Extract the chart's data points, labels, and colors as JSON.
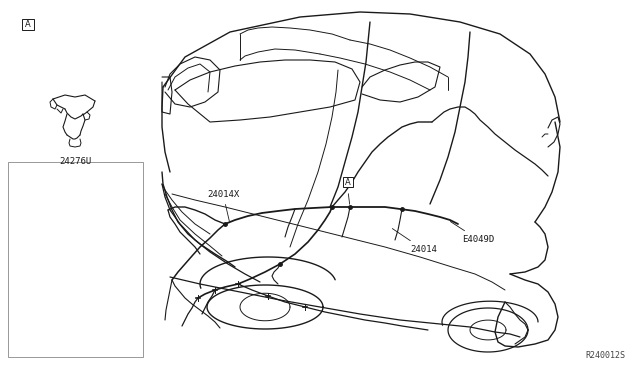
{
  "bg_color": "#ffffff",
  "line_color": "#1a1a1a",
  "fig_width": 6.4,
  "fig_height": 3.72,
  "dpi": 100,
  "ref_code": "R240012S",
  "labels": {
    "A_box_inset": "A",
    "A_box_main": "A",
    "part1": "24276U",
    "part2": "24014X",
    "part3": "24014",
    "part4": "E4049D"
  }
}
